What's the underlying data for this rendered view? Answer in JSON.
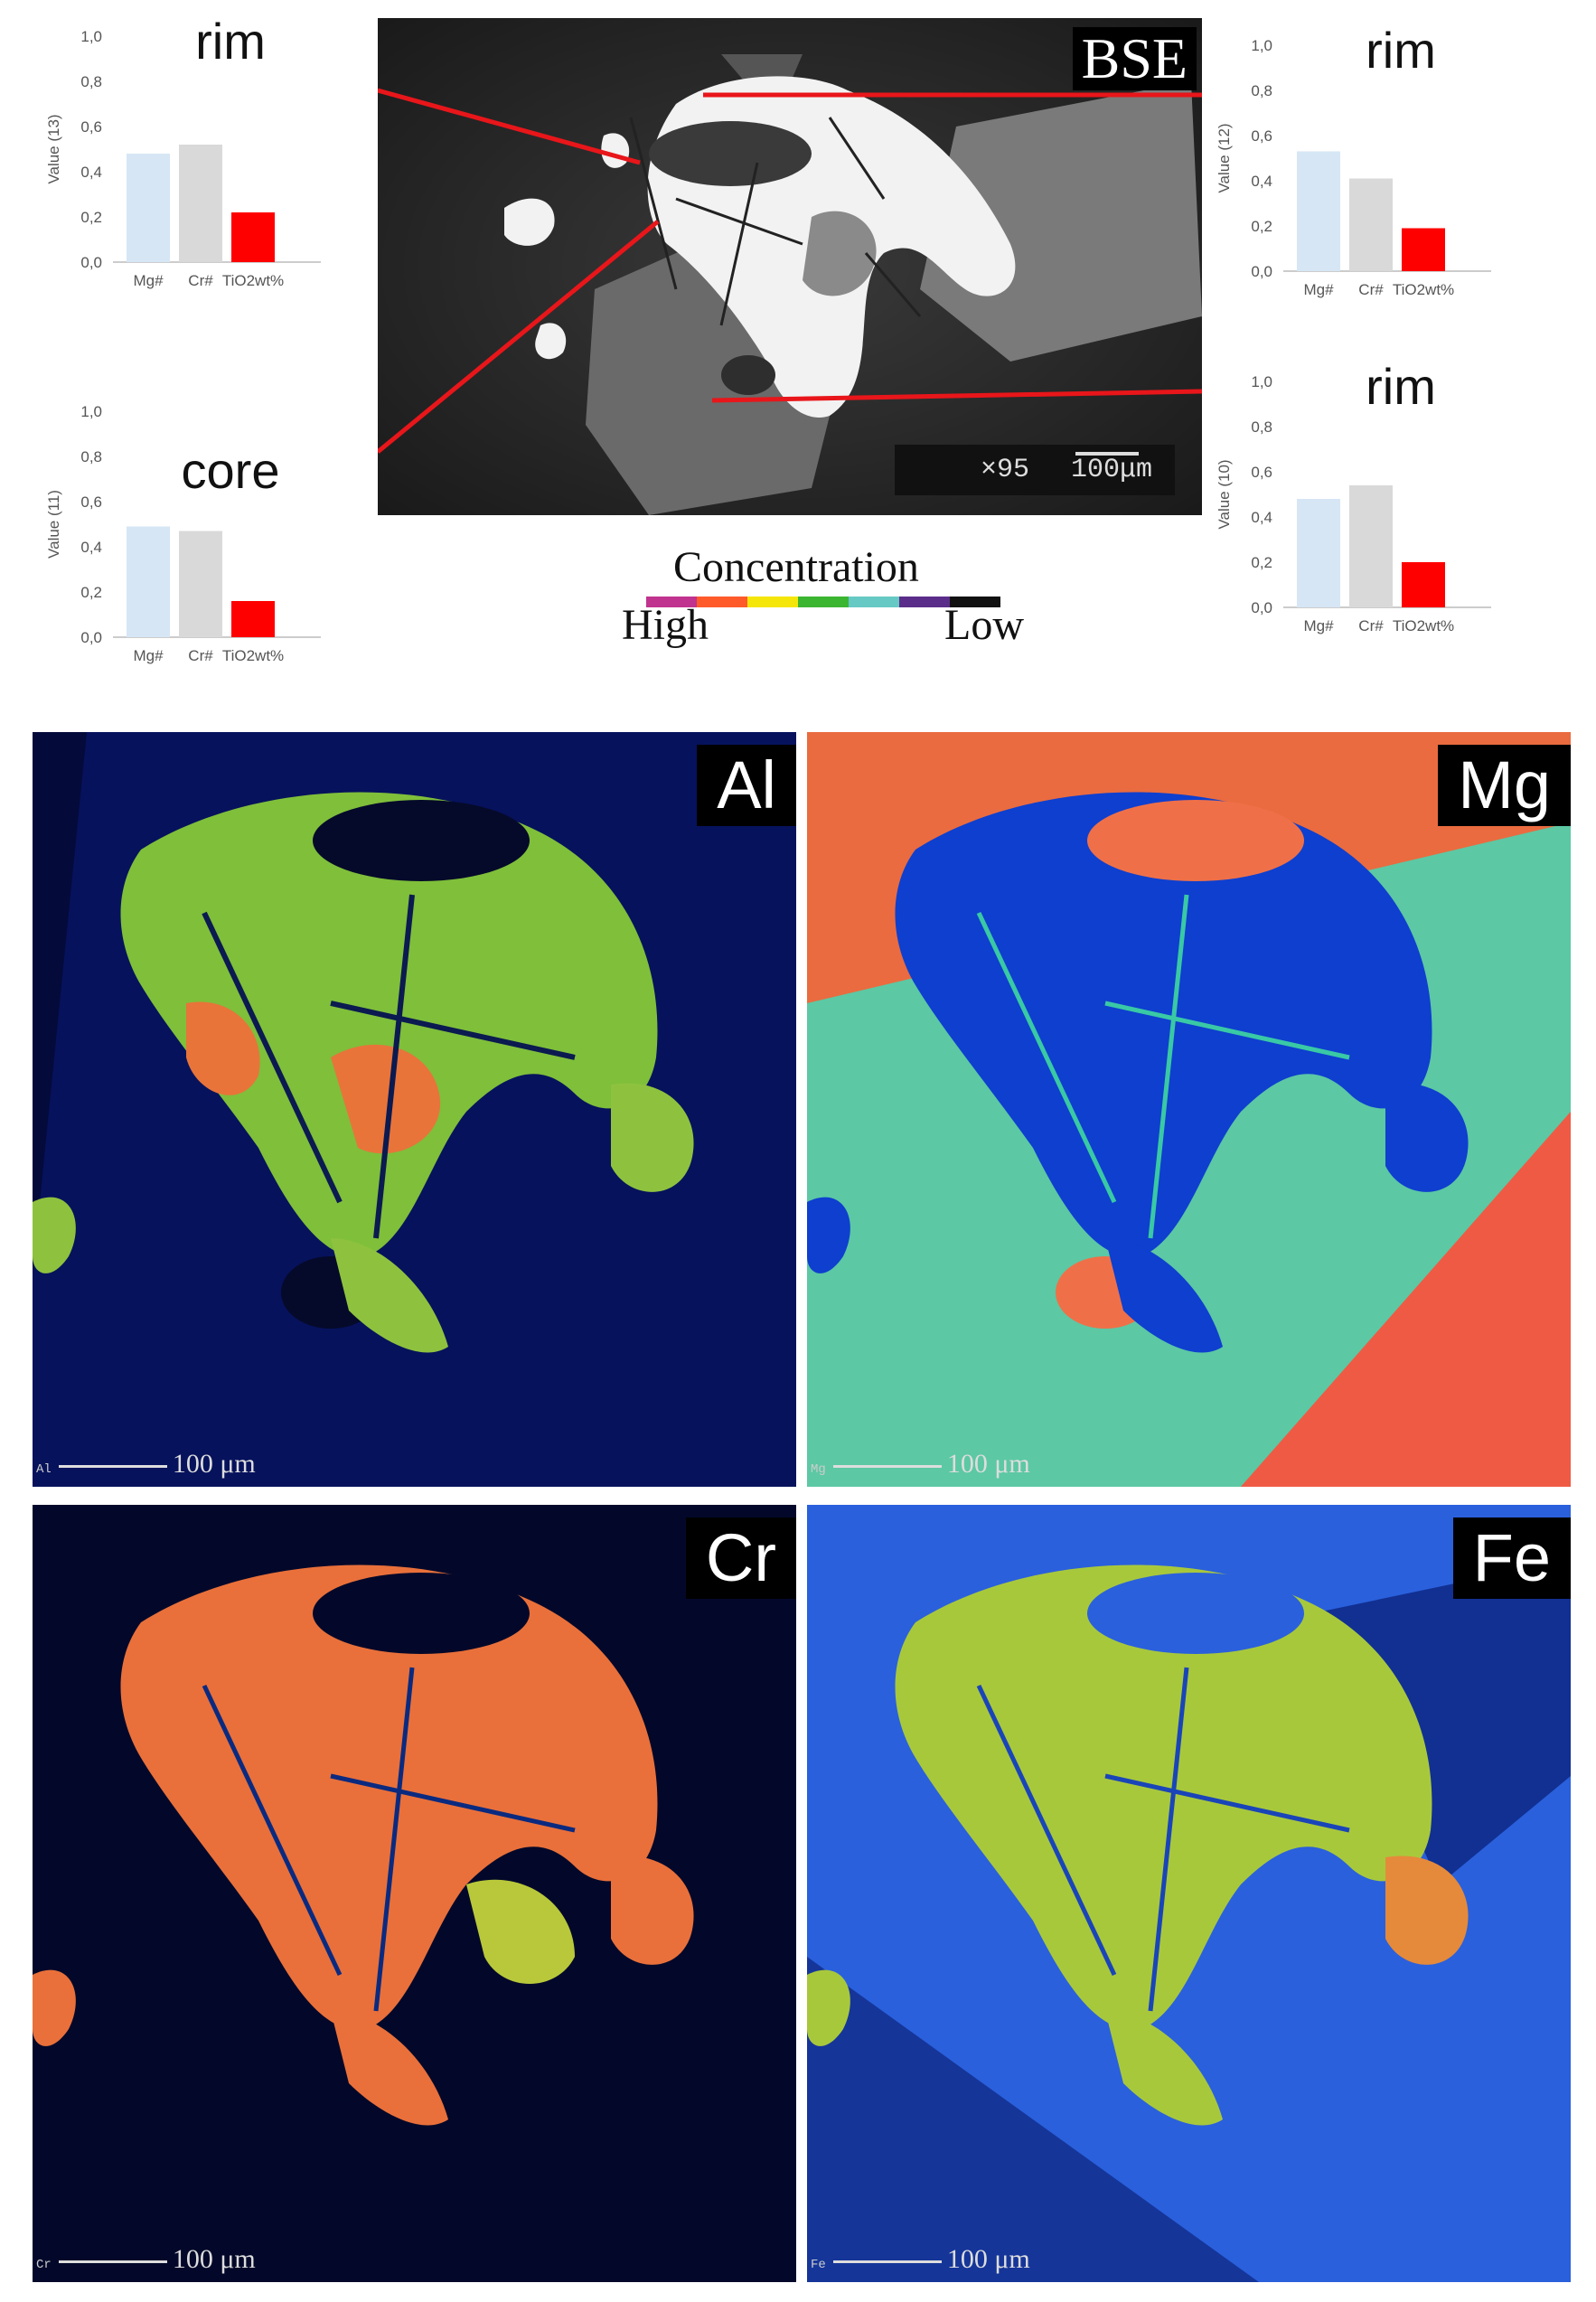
{
  "charts": [
    {
      "id": "rim-top-left",
      "region_label": "rim",
      "ylabel": "Value (13)",
      "yticks": [
        "1,0",
        "0,8",
        "0,6",
        "0,4",
        "0,2",
        "0,0"
      ]
    },
    {
      "id": "core-left",
      "region_label": "core",
      "ylabel": "Value (11)",
      "yticks": [
        "1,0",
        "0,8",
        "0,6",
        "0,4",
        "0,2",
        "0,0"
      ]
    },
    {
      "id": "rim-top-right",
      "region_label": "rim",
      "ylabel": "Value (12)",
      "yticks": [
        "1,0",
        "0,8",
        "0,6",
        "0,4",
        "0,2",
        "0,0"
      ]
    },
    {
      "id": "rim-bottom-right",
      "region_label": "rim",
      "ylabel": "Value (10)",
      "yticks": [
        "1,0",
        "0,8",
        "0,6",
        "0,4",
        "0,2",
        "0,0"
      ]
    }
  ],
  "chart_data": [
    {
      "type": "bar",
      "categories": [
        "Mg#",
        "Cr#",
        "TiO2wt%"
      ],
      "values": [
        0.48,
        0.52,
        0.22
      ],
      "ylabel": "Value (13)",
      "ylim": [
        0,
        1.0
      ],
      "colors": [
        "#d6e6f5",
        "#d9d9d9",
        "#ff0000"
      ],
      "grid": false
    },
    {
      "type": "bar",
      "categories": [
        "Mg#",
        "Cr#",
        "TiO2wt%"
      ],
      "values": [
        0.49,
        0.47,
        0.16
      ],
      "ylabel": "Value (11)",
      "ylim": [
        0,
        1.0
      ],
      "colors": [
        "#d6e6f5",
        "#d9d9d9",
        "#ff0000"
      ],
      "grid": false
    },
    {
      "type": "bar",
      "categories": [
        "Mg#",
        "Cr#",
        "TiO2wt%"
      ],
      "values": [
        0.53,
        0.41,
        0.19
      ],
      "ylabel": "Value (12)",
      "ylim": [
        0,
        1.0
      ],
      "colors": [
        "#d6e6f5",
        "#d9d9d9",
        "#ff0000"
      ],
      "grid": false
    },
    {
      "type": "bar",
      "categories": [
        "Mg#",
        "Cr#",
        "TiO2wt%"
      ],
      "values": [
        0.48,
        0.54,
        0.2
      ],
      "ylabel": "Value (10)",
      "ylim": [
        0,
        1.0
      ],
      "colors": [
        "#d6e6f5",
        "#d9d9d9",
        "#ff0000"
      ],
      "grid": false
    }
  ],
  "bse": {
    "label": "BSE",
    "magnification": "×95",
    "scale": "100μm"
  },
  "legend": {
    "title": "Concentration",
    "high": "High",
    "low": "Low",
    "colors": [
      "#c0338e",
      "#ff5a2a",
      "#f5e60a",
      "#3cb531",
      "#66c9c3",
      "#5a2d8a",
      "#111111"
    ]
  },
  "maps": [
    {
      "id": "al",
      "label": "Al",
      "element_code": "Al",
      "scale": "100 μm"
    },
    {
      "id": "mg",
      "label": "Mg",
      "element_code": "Mg",
      "scale": "100 μm"
    },
    {
      "id": "cr",
      "label": "Cr",
      "element_code": "Cr",
      "scale": "100 μm"
    },
    {
      "id": "fe",
      "label": "Fe",
      "element_code": "Fe",
      "scale": "100 μm"
    }
  ]
}
